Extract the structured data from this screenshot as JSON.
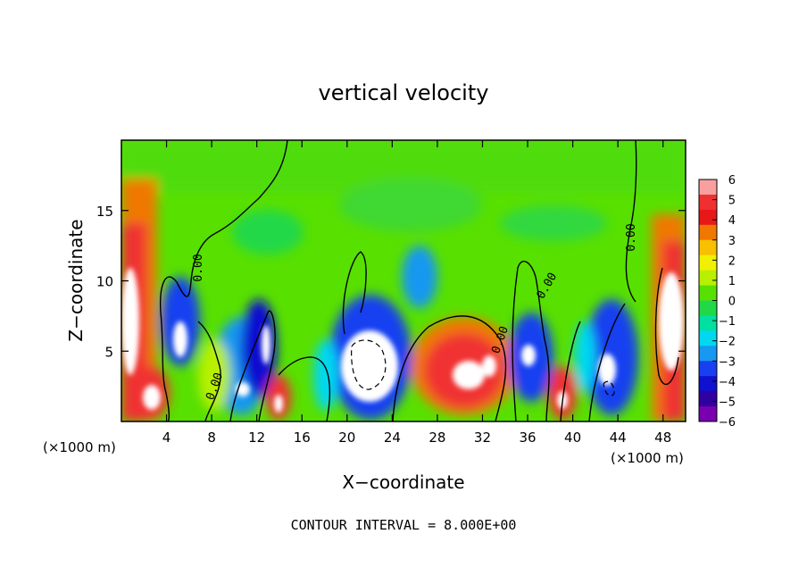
{
  "chart_data": {
    "type": "heatmap",
    "title": "vertical velocity",
    "xlabel": "X−coordinate",
    "ylabel": "Z−coordinate",
    "x_unit_left": "(×1000 m)",
    "x_unit_right": "(×1000 m)",
    "footer": "CONTOUR INTERVAL = 8.000E+00",
    "xlim": [
      0,
      50
    ],
    "ylim": [
      0,
      20
    ],
    "x_ticks": [
      4,
      8,
      12,
      16,
      20,
      24,
      28,
      32,
      36,
      40,
      44,
      48
    ],
    "y_ticks": [
      5,
      10,
      15
    ],
    "colorbar": {
      "ticks": [
        "6",
        "5",
        "4",
        "3",
        "2",
        "1",
        "0",
        "−1",
        "−2",
        "−3",
        "−4",
        "−5",
        "−6"
      ],
      "colors": [
        "#f8a0a0",
        "#f03030",
        "#e81818",
        "#f07800",
        "#f8c000",
        "#f0f000",
        "#b8f000",
        "#58e000",
        "#20d848",
        "#00e0a0",
        "#00d8f0",
        "#1898f0",
        "#1840f0",
        "#1010d0",
        "#3000a0",
        "#7800b0"
      ]
    },
    "contour_labels": [
      "0.00",
      "0.00",
      "0.00",
      "0.00",
      "0.00"
    ],
    "cells": [
      {
        "x0": 0,
        "x1": 1.5,
        "z0": 0,
        "z1": 12.5,
        "value": 6
      },
      {
        "x0": 1.5,
        "x1": 4,
        "z0": 0,
        "z1": 4,
        "value": 6
      },
      {
        "x0": 3.5,
        "x1": 6.5,
        "z0": 4,
        "z1": 9.5,
        "value": -5
      },
      {
        "x0": 9,
        "x1": 11,
        "z0": 1,
        "z1": 4,
        "value": -4
      },
      {
        "x0": 11,
        "x1": 13.5,
        "z0": 1.5,
        "z1": 9,
        "value": -5
      },
      {
        "x0": 13,
        "x1": 14.5,
        "z0": 0.5,
        "z1": 3.5,
        "value": 5
      },
      {
        "x0": 18.5,
        "x1": 23,
        "z0": 1,
        "z1": 8,
        "value": -6
      },
      {
        "x0": 18.5,
        "x1": 20.5,
        "z0": 8,
        "z1": 12,
        "value": 0
      },
      {
        "x0": 25.5,
        "x1": 27.5,
        "z0": 7.5,
        "z1": 12,
        "value": -2
      },
      {
        "x0": 26.5,
        "x1": 34,
        "z0": 1.5,
        "z1": 7.5,
        "value": 6
      },
      {
        "x0": 34.5,
        "x1": 38,
        "z0": 2,
        "z1": 6.5,
        "value": -5
      },
      {
        "x0": 37.5,
        "x1": 40,
        "z0": 0.5,
        "z1": 4,
        "value": 5
      },
      {
        "x0": 41.5,
        "x1": 45,
        "z0": 1,
        "z1": 8,
        "value": -6
      },
      {
        "x0": 46,
        "x1": 50,
        "z0": 2.5,
        "z1": 14,
        "value": 6
      }
    ]
  }
}
